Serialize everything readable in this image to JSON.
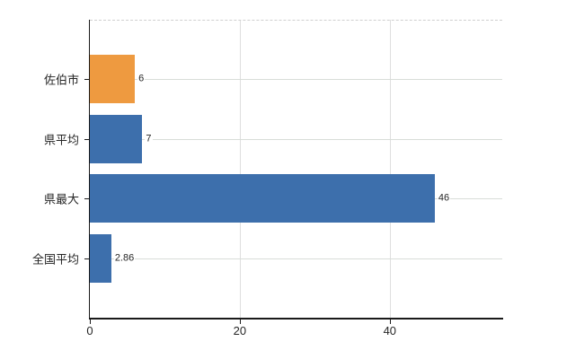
{
  "page": {
    "background": "#ffffff",
    "title": ""
  },
  "chart_data": {
    "type": "bar",
    "orientation": "horizontal",
    "title": "",
    "xlabel": "",
    "ylabel": "",
    "categories": [
      "佐伯市",
      "県平均",
      "県最大",
      "全国平均"
    ],
    "series": [
      {
        "name": "value",
        "values": [
          6,
          7,
          46,
          2.86
        ]
      }
    ],
    "value_labels": [
      "6",
      "7",
      "46",
      "2.86"
    ],
    "bar_colors": [
      "#ee9a40",
      "#3d6fac",
      "#3d6fac",
      "#3d6fac"
    ],
    "xlim": [
      0,
      55
    ],
    "x_ticks": [
      0,
      20,
      40
    ],
    "x_tick_labels": [
      "0",
      "20",
      "40"
    ],
    "legend": "none",
    "grid": {
      "horizontal_category_lines": true,
      "vertical_tick_lines": true,
      "top_border_style": "dashed"
    },
    "colors": {
      "bar_blue": "#3d6fac",
      "bar_orange": "#ee9a40",
      "gridline_horizontal": "#d8ddd8",
      "gridline_vertical": "#dedede",
      "axis_line": "#1a1a1a",
      "label_text": "#262626",
      "dashed_border": "#cfcfcf"
    }
  }
}
